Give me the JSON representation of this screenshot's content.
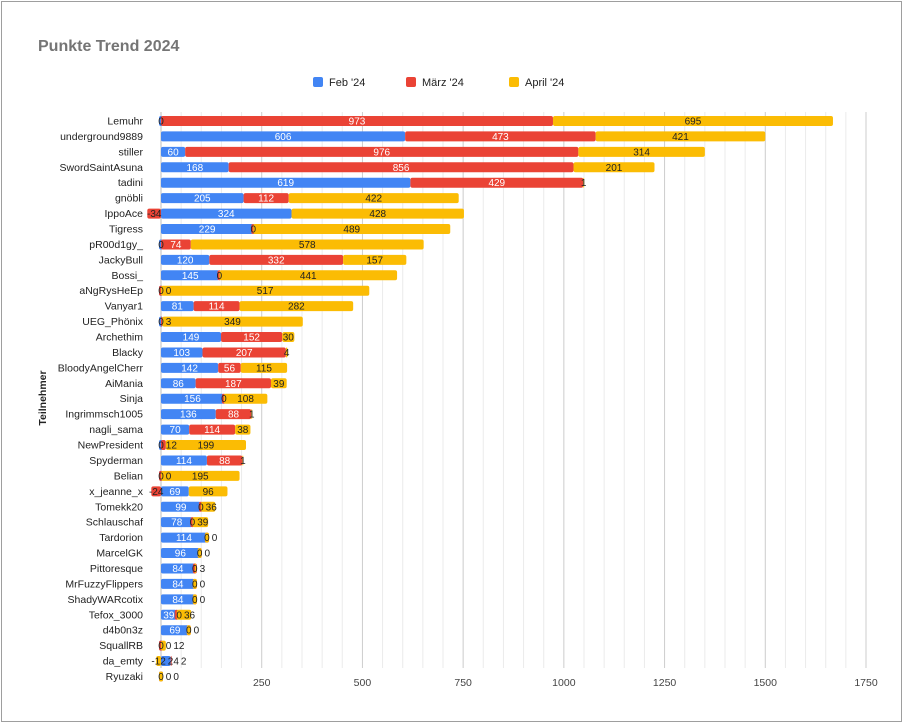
{
  "chart_data": {
    "type": "bar",
    "orientation": "horizontal",
    "stacked": true,
    "title": "Punkte Trend 2024",
    "ylabel": "Teilnehmer",
    "xlabel": "",
    "xlim": [
      0,
      1750
    ],
    "xticks": [
      250,
      500,
      750,
      1000,
      1250,
      1500,
      1750
    ],
    "grid": true,
    "legend_position": "top",
    "data_labels": true,
    "categories": [
      "Lemuhr",
      "underground9889",
      "stiller",
      "SwordSaintAsuna",
      "tadini",
      "gnöbli",
      "IppoAce",
      "Tigress",
      "pR00d1gy_",
      "JackyBull",
      "Bossi_",
      "aNgRysHeEp",
      "Vanyar1",
      "UEG_Phönix",
      "Archethim",
      "Blacky",
      "BloodyAngelCherr",
      "AiMania",
      "Sinja",
      "Ingrimmsch1005",
      "nagli_sama",
      "NewPresident",
      "Spyderman",
      "Belian",
      "x_jeanne_x",
      "Tomekk20",
      "Schlauschaf",
      "Tardorion",
      "MarcelGK",
      "Pittoresque",
      "MrFuzzyFlippers",
      "ShadyWARcotix",
      "Tefox_3000",
      "d4b0n3z",
      "SquallRB",
      "da_emty",
      "Ryuzaki"
    ],
    "series": [
      {
        "name": "Feb '24",
        "color": "#4285f4",
        "values": [
          0,
          606,
          60,
          168,
          619,
          205,
          324,
          229,
          0,
          120,
          145,
          0,
          81,
          0,
          149,
          103,
          142,
          86,
          156,
          136,
          70,
          0,
          114,
          0,
          69,
          99,
          78,
          114,
          96,
          84,
          84,
          84,
          39,
          69,
          0,
          24,
          0
        ]
      },
      {
        "name": "März '24",
        "color": "#ea4335",
        "values": [
          973,
          473,
          976,
          856,
          429,
          112,
          -34,
          0,
          74,
          332,
          0,
          0,
          114,
          3,
          152,
          207,
          56,
          187,
          0,
          88,
          114,
          12,
          88,
          0,
          -24,
          0,
          0,
          0,
          0,
          0,
          0,
          0,
          0,
          0,
          0,
          2,
          0
        ]
      },
      {
        "name": "April '24",
        "color": "#fbbc04",
        "values": [
          695,
          421,
          314,
          201,
          1,
          422,
          428,
          489,
          578,
          157,
          441,
          517,
          282,
          349,
          30,
          4,
          115,
          39,
          108,
          1,
          38,
          199,
          1,
          195,
          96,
          36,
          39,
          0,
          0,
          3,
          0,
          0,
          36,
          0,
          12,
          -12,
          0
        ]
      }
    ]
  }
}
